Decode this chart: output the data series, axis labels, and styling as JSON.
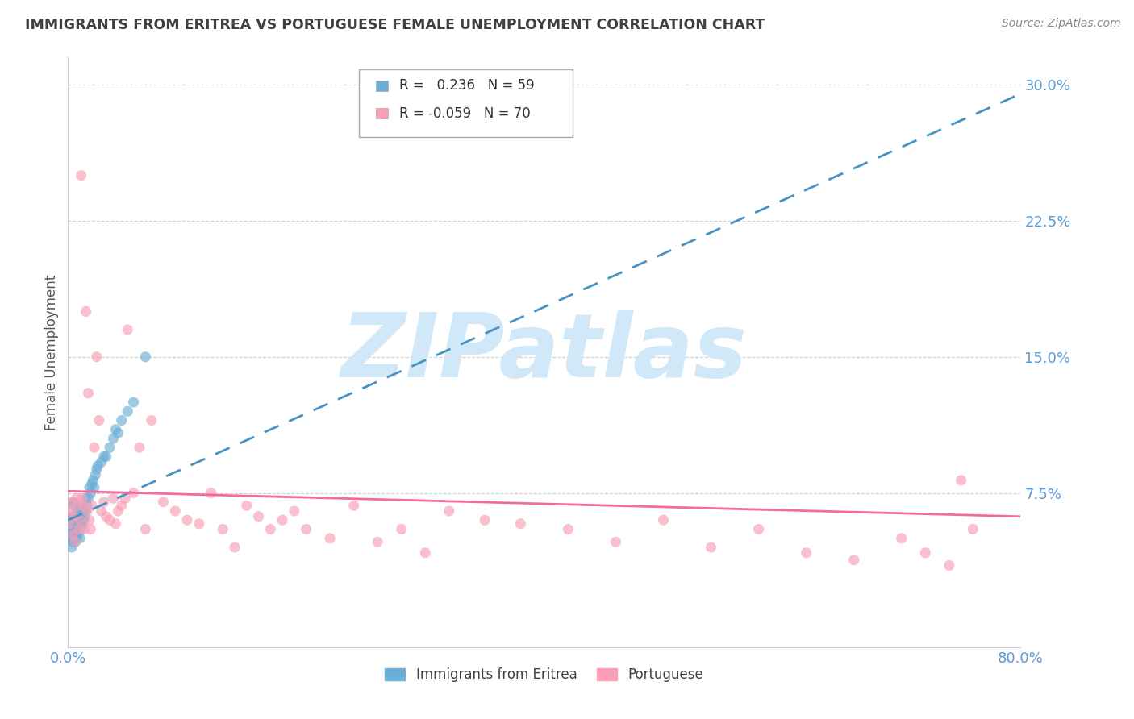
{
  "title": "IMMIGRANTS FROM ERITREA VS PORTUGUESE FEMALE UNEMPLOYMENT CORRELATION CHART",
  "source": "Source: ZipAtlas.com",
  "ylabel": "Female Unemployment",
  "watermark": "ZIPatlas",
  "xlim": [
    0.0,
    0.8
  ],
  "ylim": [
    -0.01,
    0.315
  ],
  "yticks": [
    0.075,
    0.15,
    0.225,
    0.3
  ],
  "ytick_labels": [
    "7.5%",
    "15.0%",
    "22.5%",
    "30.0%"
  ],
  "xticks": [
    0.0,
    0.1,
    0.2,
    0.3,
    0.4,
    0.5,
    0.6,
    0.7,
    0.8
  ],
  "xtick_labels": [
    "0.0%",
    "",
    "",
    "",
    "",
    "",
    "",
    "",
    "80.0%"
  ],
  "legend_eritrea_label": "Immigrants from Eritrea",
  "legend_portuguese_label": "Portuguese",
  "R_eritrea": 0.236,
  "N_eritrea": 59,
  "R_portuguese": -0.059,
  "N_portuguese": 70,
  "color_eritrea": "#6baed6",
  "color_portuguese": "#fa9fb5",
  "trendline_eritrea_color": "#4393c3",
  "trendline_portuguese_color": "#f768a1",
  "background_color": "#ffffff",
  "axis_color": "#5b9bd5",
  "title_color": "#404040",
  "watermark_color": "#d0e8f8",
  "eritrea_x": [
    0.001,
    0.002,
    0.002,
    0.003,
    0.003,
    0.003,
    0.004,
    0.004,
    0.004,
    0.004,
    0.005,
    0.005,
    0.005,
    0.005,
    0.006,
    0.006,
    0.006,
    0.007,
    0.007,
    0.007,
    0.007,
    0.008,
    0.008,
    0.008,
    0.009,
    0.009,
    0.01,
    0.01,
    0.01,
    0.011,
    0.011,
    0.012,
    0.012,
    0.013,
    0.013,
    0.014,
    0.015,
    0.015,
    0.016,
    0.017,
    0.018,
    0.019,
    0.02,
    0.021,
    0.022,
    0.023,
    0.024,
    0.025,
    0.028,
    0.03,
    0.032,
    0.035,
    0.038,
    0.04,
    0.042,
    0.045,
    0.05,
    0.055,
    0.065
  ],
  "eritrea_y": [
    0.05,
    0.055,
    0.062,
    0.045,
    0.052,
    0.06,
    0.048,
    0.055,
    0.06,
    0.068,
    0.05,
    0.055,
    0.062,
    0.07,
    0.048,
    0.055,
    0.062,
    0.05,
    0.055,
    0.06,
    0.068,
    0.052,
    0.06,
    0.065,
    0.055,
    0.062,
    0.05,
    0.058,
    0.065,
    0.055,
    0.062,
    0.058,
    0.065,
    0.06,
    0.068,
    0.062,
    0.065,
    0.072,
    0.068,
    0.072,
    0.078,
    0.075,
    0.08,
    0.082,
    0.078,
    0.085,
    0.088,
    0.09,
    0.092,
    0.095,
    0.095,
    0.1,
    0.105,
    0.11,
    0.108,
    0.115,
    0.12,
    0.125,
    0.15
  ],
  "portuguese_x": [
    0.001,
    0.002,
    0.003,
    0.004,
    0.005,
    0.006,
    0.007,
    0.008,
    0.009,
    0.01,
    0.011,
    0.012,
    0.013,
    0.014,
    0.015,
    0.016,
    0.017,
    0.018,
    0.019,
    0.02,
    0.022,
    0.024,
    0.026,
    0.028,
    0.03,
    0.032,
    0.035,
    0.038,
    0.04,
    0.042,
    0.045,
    0.048,
    0.05,
    0.055,
    0.06,
    0.065,
    0.07,
    0.08,
    0.09,
    0.1,
    0.11,
    0.12,
    0.13,
    0.14,
    0.15,
    0.16,
    0.17,
    0.18,
    0.19,
    0.2,
    0.22,
    0.24,
    0.26,
    0.28,
    0.3,
    0.32,
    0.35,
    0.38,
    0.42,
    0.46,
    0.5,
    0.54,
    0.58,
    0.62,
    0.66,
    0.7,
    0.72,
    0.74,
    0.76,
    0.75
  ],
  "portuguese_y": [
    0.058,
    0.065,
    0.07,
    0.052,
    0.062,
    0.048,
    0.072,
    0.068,
    0.055,
    0.06,
    0.25,
    0.072,
    0.068,
    0.055,
    0.175,
    0.065,
    0.13,
    0.06,
    0.055,
    0.068,
    0.1,
    0.15,
    0.115,
    0.065,
    0.07,
    0.062,
    0.06,
    0.072,
    0.058,
    0.065,
    0.068,
    0.072,
    0.165,
    0.075,
    0.1,
    0.055,
    0.115,
    0.07,
    0.065,
    0.06,
    0.058,
    0.075,
    0.055,
    0.045,
    0.068,
    0.062,
    0.055,
    0.06,
    0.065,
    0.055,
    0.05,
    0.068,
    0.048,
    0.055,
    0.042,
    0.065,
    0.06,
    0.058,
    0.055,
    0.048,
    0.06,
    0.045,
    0.055,
    0.042,
    0.038,
    0.05,
    0.042,
    0.035,
    0.055,
    0.082
  ],
  "eritrea_trendline_x": [
    0.0,
    0.8
  ],
  "eritrea_trendline_y": [
    0.06,
    0.295
  ],
  "portuguese_trendline_x": [
    0.0,
    0.8
  ],
  "portuguese_trendline_y": [
    0.076,
    0.062
  ]
}
